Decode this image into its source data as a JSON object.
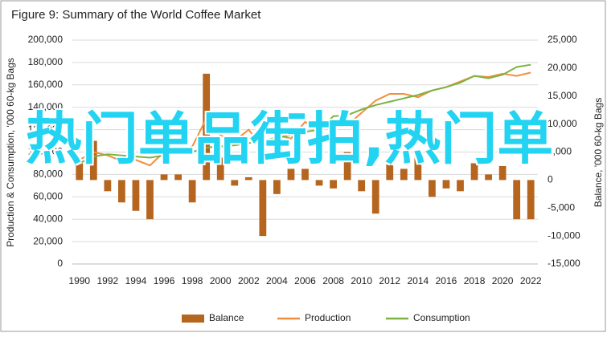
{
  "chart_data": {
    "type": "bar-line-combo",
    "title": "Figure 9: Summary of the World Coffee Market",
    "y_label": "Production & Consumption, '000 60-kg Bags",
    "y2_label": "Balance, '000 60-kg Bags",
    "annotation": "热门单品街拍,热门单",
    "categories": [
      1990,
      null,
      1992,
      null,
      1994,
      null,
      1996,
      null,
      1998,
      null,
      2000,
      null,
      2002,
      null,
      2004,
      null,
      2006,
      null,
      2008,
      null,
      2010,
      null,
      2012,
      null,
      2014,
      null,
      2016,
      null,
      2018,
      null,
      2020,
      null,
      2022
    ],
    "series": [
      {
        "name": "Balance",
        "color": "#b5651d",
        "axis": "y2",
        "kind": "bar",
        "values": [
          3000,
          7000,
          -2000,
          -4000,
          -5500,
          -7000,
          1000,
          1000,
          -4000,
          19000,
          4000,
          -1000,
          500,
          -10000,
          -2500,
          2000,
          2000,
          -1000,
          -1500,
          5000,
          -2000,
          -6000,
          4000,
          2000,
          5000,
          -3000,
          -1500,
          -2000,
          3000,
          1000,
          2500,
          -7000,
          -7000
        ]
      },
      {
        "name": "Production",
        "color": "#f28e3c",
        "axis": "y",
        "kind": "line",
        "values": [
          93000,
          100000,
          97000,
          92000,
          93000,
          88000,
          100000,
          98000,
          105000,
          130000,
          115000,
          110000,
          120000,
          104000,
          115000,
          112000,
          127000,
          118000,
          128000,
          124000,
          135000,
          146000,
          152000,
          152000,
          149000,
          155000,
          158000,
          163000,
          168000,
          167000,
          170000,
          168000,
          171000
        ]
      },
      {
        "name": "Consumption",
        "color": "#7cb342",
        "axis": "y",
        "kind": "line",
        "values": [
          90000,
          96000,
          98000,
          97000,
          96000,
          95000,
          97000,
          99000,
          100000,
          104000,
          105000,
          106000,
          108000,
          110000,
          113000,
          115000,
          118000,
          120000,
          132000,
          133000,
          138000,
          142000,
          145000,
          148000,
          151000,
          155000,
          158000,
          162000,
          168000,
          166000,
          169000,
          176000,
          178000
        ]
      }
    ],
    "ylim": [
      0,
      200000
    ],
    "yticks": [
      0,
      {
        "value": 20000,
        "label": "20,000"
      },
      {
        "value": 40000,
        "label": "40,000"
      },
      {
        "value": 60000,
        "label": "60,000"
      },
      {
        "value": 80000,
        "label": "80,000"
      },
      {
        "value": 100000,
        "label": "100,000"
      },
      {
        "value": 120000,
        "label": "120,000"
      },
      {
        "value": 140000,
        "label": "140,000"
      },
      {
        "value": 160000,
        "label": "160,000"
      },
      {
        "value": 180000,
        "label": "180,000"
      },
      {
        "value": 200000,
        "label": "200,000"
      }
    ],
    "y2lim": [
      -15000,
      25000
    ],
    "y2ticks": [
      {
        "value": -15000,
        "label": "-15,000"
      },
      {
        "value": -10000,
        "label": "-10,000"
      },
      {
        "value": -5000,
        "label": "-5,000"
      },
      0,
      {
        "value": 5000,
        "label": "5,000"
      },
      {
        "value": 10000,
        "label": "10,000"
      },
      {
        "value": 15000,
        "label": "15,000"
      },
      {
        "value": 20000,
        "label": "20,000"
      },
      {
        "value": 25000,
        "label": "25,000"
      }
    ],
    "grid": true,
    "legend": "bottom"
  }
}
